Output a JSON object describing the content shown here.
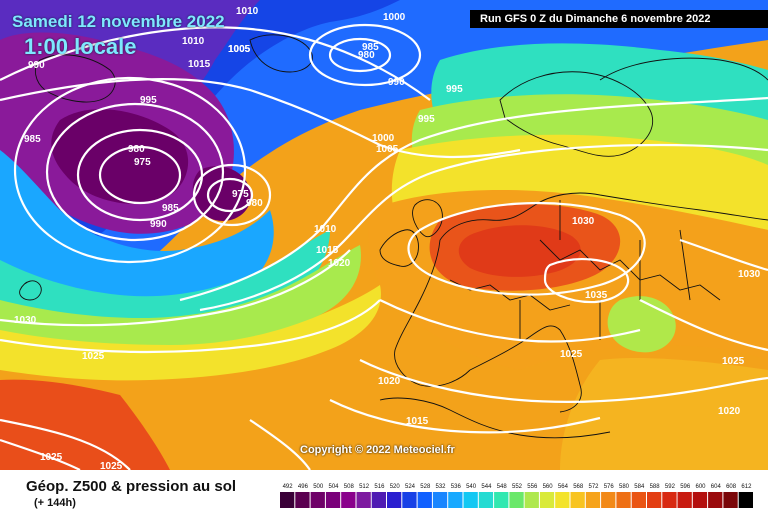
{
  "map": {
    "date_title": "Samedi 12 novembre 2022",
    "time_title": "1:00 locale",
    "run_title": "Run GFS 0 Z du Dimanche 6 novembre 2022",
    "copyright": "Copyright © 2022 Meteociel.fr",
    "legend_title": "Géop. Z500 & pression au sol",
    "legend_sub": "(+ 144h)",
    "pressure_labels": [
      "1010",
      "1005",
      "1000",
      "1010",
      "1005",
      "1015",
      "985",
      "980",
      "990",
      "995",
      "995",
      "990",
      "985",
      "980",
      "975",
      "975",
      "980",
      "985",
      "990",
      "995",
      "1000",
      "1005",
      "1010",
      "1015",
      "1020",
      "1030",
      "1030",
      "1025",
      "1025",
      "1020",
      "1015",
      "1035",
      "1030",
      "1025",
      "1025",
      "1020",
      "1025"
    ],
    "scale_values": [
      "492",
      "496",
      "500",
      "504",
      "508",
      "512",
      "516",
      "520",
      "524",
      "528",
      "532",
      "536",
      "540",
      "544",
      "548",
      "552",
      "556",
      "560",
      "564",
      "568",
      "572",
      "576",
      "580",
      "584",
      "588",
      "592",
      "596",
      "600",
      "604",
      "608",
      "612"
    ],
    "scale_colors": [
      "#3a0038",
      "#5a0050",
      "#6f0068",
      "#7a007a",
      "#8a008c",
      "#7d1aa0",
      "#4f1bb3",
      "#2a1fd0",
      "#1640e6",
      "#1060ff",
      "#1a86ff",
      "#18a9ff",
      "#13c8f3",
      "#25dbd2",
      "#30e8b0",
      "#6ae86a",
      "#aee84d",
      "#d9ea3a",
      "#f3e32b",
      "#f8c421",
      "#f6a31b",
      "#f28917",
      "#ee6f14",
      "#ea5413",
      "#e33e12",
      "#d82911",
      "#c81b10",
      "#b4100f",
      "#9a0a0c",
      "#7a0608",
      "#000000"
    ],
    "colors": {
      "title_cyan": "#7ee8ff",
      "contour": "#ffffff",
      "land_border": "#111111"
    }
  }
}
